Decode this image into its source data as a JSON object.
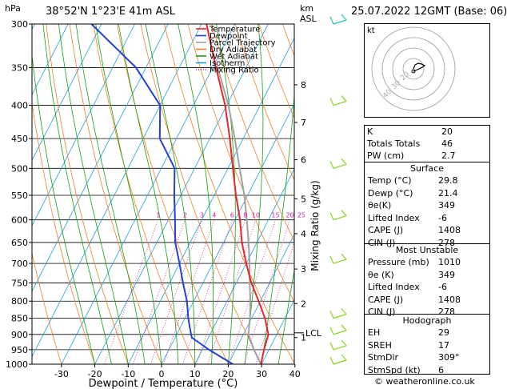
{
  "header": {
    "location": "38°52'N  1°23'E  41m  ASL",
    "datetime": "25.07.2022  12GMT  (Base: 06)",
    "p_unit": "hPa",
    "alt_unit_km": "km",
    "alt_unit_asl": "ASL"
  },
  "chart_data": {
    "type": "skew-t",
    "xlabel": "Dewpoint / Temperature (°C)",
    "ylabel_right": "Mixing Ratio (g/kg)",
    "pressure_levels": [
      300,
      350,
      400,
      450,
      500,
      550,
      600,
      650,
      700,
      750,
      800,
      850,
      900,
      950,
      1000
    ],
    "temperature_ticks": [
      -30,
      -20,
      -10,
      0,
      10,
      20,
      30,
      40
    ],
    "xlim": [
      -40,
      40
    ],
    "ylim": [
      1000,
      300
    ],
    "km_labels": [
      {
        "km": "8",
        "p": 372
      },
      {
        "km": "7",
        "p": 425
      },
      {
        "km": "6",
        "p": 485
      },
      {
        "km": "5",
        "p": 557
      },
      {
        "km": "4",
        "p": 630
      },
      {
        "km": "3",
        "p": 714
      },
      {
        "km": "2",
        "p": 807
      },
      {
        "km": "1",
        "p": 910
      }
    ],
    "lcl_label": {
      "text": "LCL",
      "p": 895
    },
    "mixing_ratio_labels": [
      "1",
      "2",
      "3",
      "4",
      "6",
      "8",
      "10",
      "15",
      "20",
      "25"
    ],
    "legend": [
      {
        "name": "Temperature",
        "color": "#e8262a",
        "dash": "solid"
      },
      {
        "name": "Dewpoint",
        "color": "#2440d8",
        "dash": "solid"
      },
      {
        "name": "Parcel Trajectory",
        "color": "#a0a0a0",
        "dash": "solid"
      },
      {
        "name": "Dry Adiabat",
        "color": "#f08020",
        "dash": "solid"
      },
      {
        "name": "Wet Adiabat",
        "color": "#10a010",
        "dash": "solid"
      },
      {
        "name": "Isotherm",
        "color": "#20a0e0",
        "dash": "solid"
      },
      {
        "name": "Mixing Ratio",
        "color": "#d020a0",
        "dash": "dotted"
      }
    ],
    "temperature": [
      {
        "p": 1000,
        "t": 29.8
      },
      {
        "p": 950,
        "t": 28.5
      },
      {
        "p": 900,
        "t": 27.5
      },
      {
        "p": 850,
        "t": 24.0
      },
      {
        "p": 800,
        "t": 19.5
      },
      {
        "p": 750,
        "t": 14.5
      },
      {
        "p": 700,
        "t": 10.0
      },
      {
        "p": 650,
        "t": 5.5
      },
      {
        "p": 600,
        "t": 1.5
      },
      {
        "p": 550,
        "t": -3.5
      },
      {
        "p": 500,
        "t": -8.5
      },
      {
        "p": 450,
        "t": -14.0
      },
      {
        "p": 400,
        "t": -20.5
      },
      {
        "p": 350,
        "t": -29.0
      },
      {
        "p": 300,
        "t": -38.5
      }
    ],
    "dewpoint": [
      {
        "p": 1000,
        "t": 21.4
      },
      {
        "p": 950,
        "t": 12.0
      },
      {
        "p": 910,
        "t": 5.0
      },
      {
        "p": 880,
        "t": 3.0
      },
      {
        "p": 850,
        "t": 1.0
      },
      {
        "p": 800,
        "t": -2.0
      },
      {
        "p": 750,
        "t": -6.0
      },
      {
        "p": 700,
        "t": -10.0
      },
      {
        "p": 650,
        "t": -14.5
      },
      {
        "p": 600,
        "t": -18.0
      },
      {
        "p": 550,
        "t": -22.0
      },
      {
        "p": 500,
        "t": -26.0
      },
      {
        "p": 450,
        "t": -35.0
      },
      {
        "p": 400,
        "t": -40.0
      },
      {
        "p": 350,
        "t": -53.0
      },
      {
        "p": 300,
        "t": -73.0
      }
    ],
    "parcel": [
      {
        "p": 1000,
        "t": 29.8
      },
      {
        "p": 950,
        "t": 25.5
      },
      {
        "p": 900,
        "t": 21.5
      },
      {
        "p": 850,
        "t": 19.5
      },
      {
        "p": 800,
        "t": 17.0
      },
      {
        "p": 750,
        "t": 14.0
      },
      {
        "p": 700,
        "t": 11.0
      },
      {
        "p": 650,
        "t": 7.5
      },
      {
        "p": 600,
        "t": 3.5
      },
      {
        "p": 550,
        "t": -1.0
      },
      {
        "p": 500,
        "t": -6.5
      },
      {
        "p": 450,
        "t": -12.5
      },
      {
        "p": 400,
        "t": -19.5
      },
      {
        "p": 350,
        "t": -28.5
      }
    ],
    "wind_barbs_levels": [
      300,
      400,
      500,
      600,
      700,
      850,
      900,
      950,
      1000
    ]
  },
  "indices": {
    "rows": [
      {
        "label": "K",
        "value": "20"
      },
      {
        "label": "Totals Totals",
        "value": "46"
      },
      {
        "label": "PW (cm)",
        "value": "2.7"
      }
    ]
  },
  "surface": {
    "title": "Surface",
    "rows": [
      {
        "label": "Temp (°C)",
        "value": "29.8"
      },
      {
        "label": "Dewp (°C)",
        "value": "21.4"
      },
      {
        "label": "θe(K)",
        "value": "349"
      },
      {
        "label": "Lifted Index",
        "value": "-6"
      },
      {
        "label": "CAPE (J)",
        "value": "1408"
      },
      {
        "label": "CIN (J)",
        "value": "278"
      }
    ]
  },
  "most_unstable": {
    "title": "Most Unstable",
    "rows": [
      {
        "label": "Pressure (mb)",
        "value": "1010"
      },
      {
        "label": "θe (K)",
        "value": "349"
      },
      {
        "label": "Lifted Index",
        "value": "-6"
      },
      {
        "label": "CAPE (J)",
        "value": "1408"
      },
      {
        "label": "CIN (J)",
        "value": "278"
      }
    ]
  },
  "hodograph": {
    "title": "Hodograph",
    "unit_label": "kt",
    "ring_labels": [
      "20",
      "30",
      "40"
    ],
    "rows": [
      {
        "label": "EH",
        "value": "29"
      },
      {
        "label": "SREH",
        "value": "17"
      },
      {
        "label": "StmDir",
        "value": "309°"
      },
      {
        "label": "StmSpd (kt)",
        "value": "6"
      }
    ]
  },
  "footer": {
    "credit": "© weatheronline.co.uk"
  },
  "colors": {
    "temperature": "#e8262a",
    "dewpoint": "#2440d8",
    "parcel": "#a0a0a0",
    "dry_adiabat": "#f08020",
    "wet_adiabat": "#10a010",
    "isotherm": "#20a0e0",
    "mixing_ratio": "#d020a0",
    "barb": "#8bd21e",
    "barb_top": "#20c0c0"
  }
}
